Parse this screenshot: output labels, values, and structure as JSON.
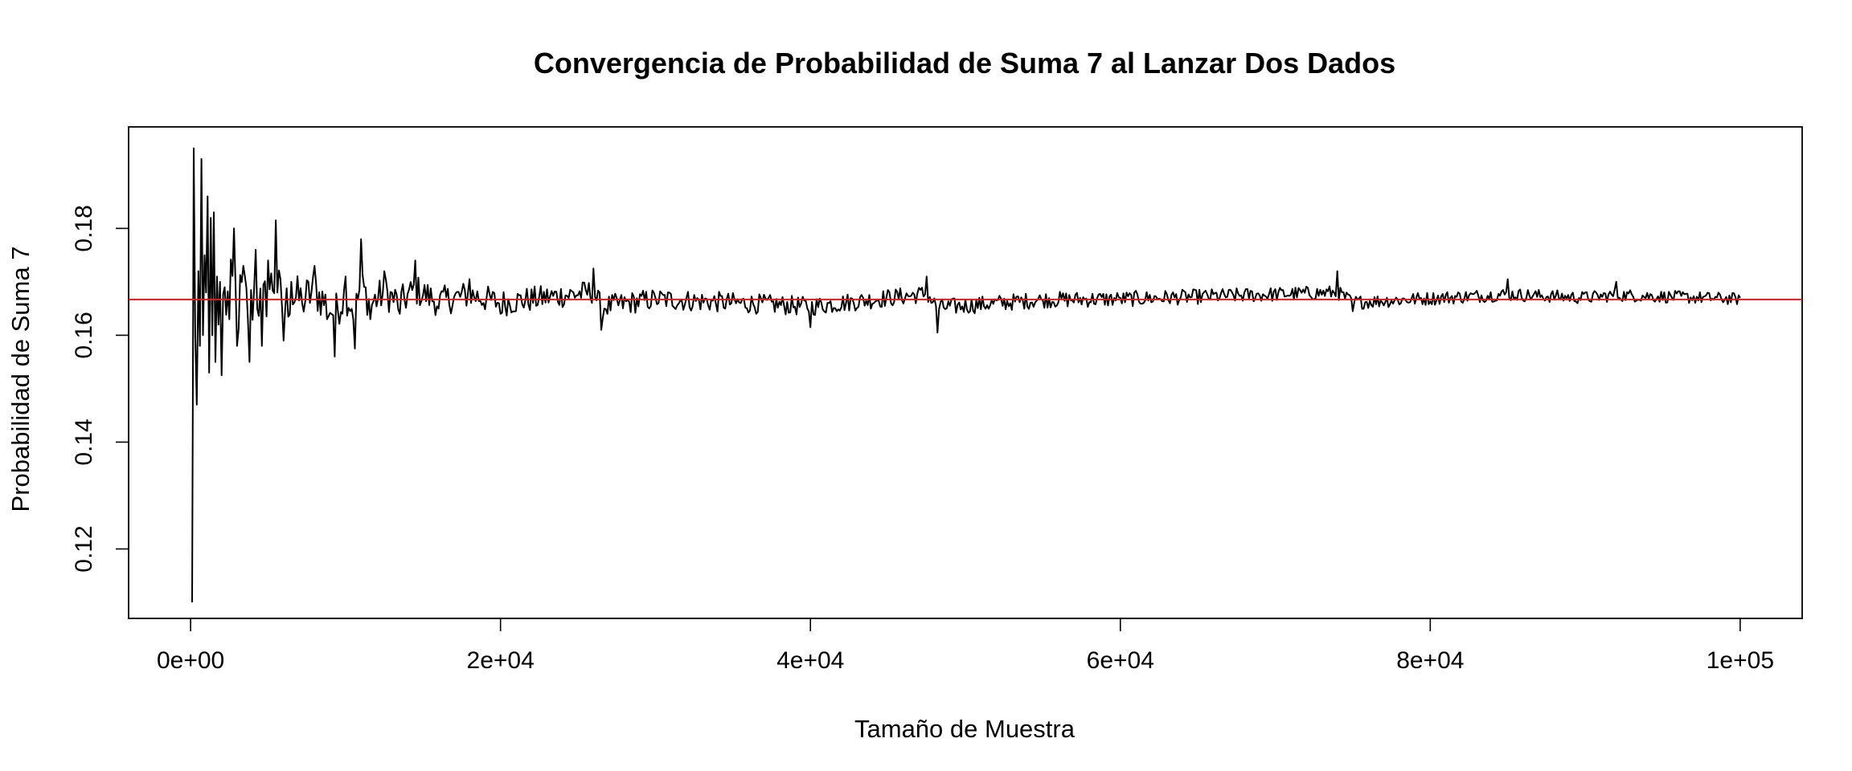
{
  "chart_data": {
    "type": "line",
    "title": "Convergencia de Probabilidad de Suma 7 al Lanzar Dos Dados",
    "xlabel": "Tamaño de Muestra",
    "ylabel": "Probabilidad de Suma 7",
    "xlim": [
      -4000,
      104000
    ],
    "ylim": [
      0.107,
      0.199
    ],
    "x_ticks": [
      {
        "value": 0,
        "label": "0e+00"
      },
      {
        "value": 20000,
        "label": "2e+04"
      },
      {
        "value": 40000,
        "label": "4e+04"
      },
      {
        "value": 60000,
        "label": "6e+04"
      },
      {
        "value": 80000,
        "label": "8e+04"
      },
      {
        "value": 100000,
        "label": "1e+05"
      }
    ],
    "y_ticks": [
      {
        "value": 0.12,
        "label": "0.12"
      },
      {
        "value": 0.14,
        "label": "0.14"
      },
      {
        "value": 0.16,
        "label": "0.16"
      },
      {
        "value": 0.18,
        "label": "0.18"
      }
    ],
    "grid": false,
    "series": [
      {
        "color": "#000000",
        "x_start": 100,
        "x_step": 100,
        "key_points": [
          [
            100,
            0.11
          ],
          [
            200,
            0.195
          ],
          [
            300,
            0.16
          ],
          [
            400,
            0.147
          ],
          [
            500,
            0.172
          ],
          [
            600,
            0.158
          ],
          [
            700,
            0.193
          ],
          [
            800,
            0.16
          ],
          [
            900,
            0.175
          ],
          [
            1000,
            0.168
          ],
          [
            1100,
            0.186
          ],
          [
            1200,
            0.153
          ],
          [
            1300,
            0.182
          ],
          [
            1400,
            0.16
          ],
          [
            1500,
            0.183
          ],
          [
            1600,
            0.155
          ],
          [
            1700,
            0.171
          ],
          [
            1800,
            0.162
          ],
          [
            1900,
            0.17
          ],
          [
            2000,
            0.1525
          ],
          [
            2200,
            0.169
          ],
          [
            2500,
            0.163
          ],
          [
            2800,
            0.18
          ],
          [
            3000,
            0.158
          ],
          [
            3400,
            0.173
          ],
          [
            3800,
            0.155
          ],
          [
            4200,
            0.176
          ],
          [
            4600,
            0.158
          ],
          [
            5000,
            0.174
          ],
          [
            5500,
            0.1815
          ],
          [
            6000,
            0.159
          ],
          [
            6500,
            0.17
          ],
          [
            7200,
            0.166
          ],
          [
            8000,
            0.173
          ],
          [
            8800,
            0.163
          ],
          [
            9300,
            0.156
          ],
          [
            10000,
            0.171
          ],
          [
            10600,
            0.1575
          ],
          [
            11000,
            0.178
          ],
          [
            11600,
            0.163
          ],
          [
            12500,
            0.172
          ],
          [
            13500,
            0.164
          ],
          [
            14500,
            0.174
          ],
          [
            16000,
            0.165
          ],
          [
            18000,
            0.1705
          ],
          [
            20000,
            0.164
          ],
          [
            26000,
            0.1725
          ],
          [
            26500,
            0.161
          ],
          [
            30000,
            0.167
          ],
          [
            40000,
            0.1615
          ],
          [
            47500,
            0.171
          ],
          [
            48200,
            0.1605
          ],
          [
            55000,
            0.1665
          ],
          [
            60000,
            0.167
          ],
          [
            74000,
            0.172
          ],
          [
            75000,
            0.1645
          ],
          [
            85000,
            0.1705
          ],
          [
            90000,
            0.168
          ],
          [
            92000,
            0.17
          ],
          [
            100000,
            0.167
          ]
        ]
      },
      {
        "color": "#d42020",
        "y_constant": 0.1667
      }
    ]
  }
}
